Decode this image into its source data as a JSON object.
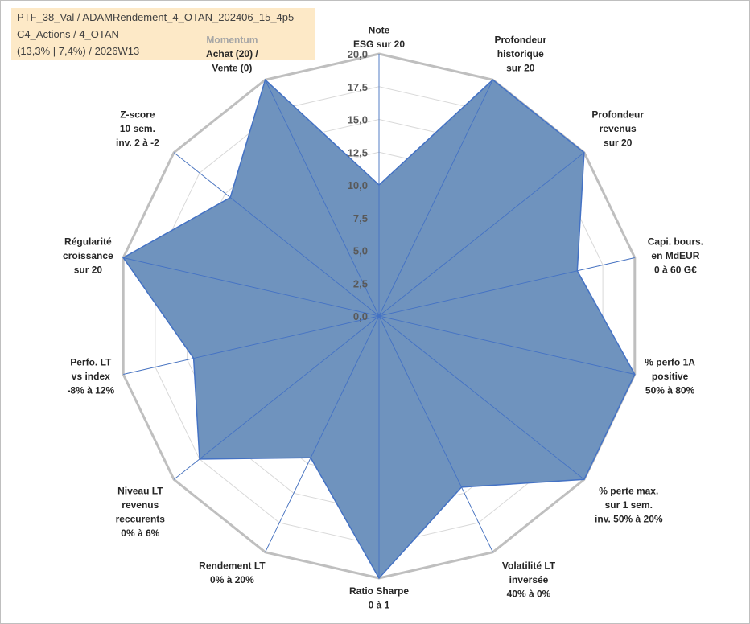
{
  "info": {
    "line1": "PTF_38_Val / ADAMRendement_4_OTAN_202406_15_4p5",
    "line2": "C4_Actions / 4_OTAN",
    "line3": "(13,3% | 7,4%) / 2026W13"
  },
  "chart_data": {
    "type": "radar",
    "title": "",
    "rmin": 0,
    "rmax": 20,
    "ticks": [
      "0,0",
      "2,5",
      "5,0",
      "7,5",
      "10,0",
      "12,5",
      "15,0",
      "17,5",
      "20,0"
    ],
    "axes": [
      {
        "label": [
          "Note",
          "ESG sur 20"
        ],
        "value": 10
      },
      {
        "label": [
          "Profondeur",
          "historique",
          "sur 20"
        ],
        "value": 20
      },
      {
        "label": [
          "Profondeur",
          "revenus",
          "sur 20"
        ],
        "value": 20
      },
      {
        "label": [
          "Capi. bours.",
          "en MdEUR",
          "0 à 60 G€"
        ],
        "value": 15.5
      },
      {
        "label": [
          "% perfo 1A",
          "positive",
          "50% à 80%"
        ],
        "value": 20
      },
      {
        "label": [
          "% perte max.",
          "sur 1 sem.",
          "inv. 50% à 20%"
        ],
        "value": 20
      },
      {
        "label": [
          "Volatilité LT",
          "inversée",
          "40% à 0%"
        ],
        "value": 14.5
      },
      {
        "label": [
          "Ratio Sharpe",
          "0 à 1"
        ],
        "value": 20
      },
      {
        "label": [
          "Rendement LT",
          "0% à 20%"
        ],
        "value": 12
      },
      {
        "label": [
          "Niveau LT",
          "revenus",
          "reccurents",
          "0% à 6%"
        ],
        "value": 17.5
      },
      {
        "label": [
          "Perfo. LT",
          "vs index",
          "-8% à 12%"
        ],
        "value": 14.5
      },
      {
        "label": [
          "Régularité",
          "croissance",
          "sur 20"
        ],
        "value": 20
      },
      {
        "label": [
          "Z-score",
          "10 sem.",
          "inv. 2 à -2"
        ],
        "value": 14.5
      },
      {
        "label": [
          "Achat (20) /",
          "Vente (0)"
        ],
        "value": 20,
        "header": "Momentum"
      }
    ],
    "series": [
      {
        "name": "PTF_38_Val",
        "fill": "#6f93be",
        "stroke": "#4472c4"
      }
    ],
    "grid_color": "#d9d9d9",
    "outer_ring_color": "#bfbfbf"
  }
}
